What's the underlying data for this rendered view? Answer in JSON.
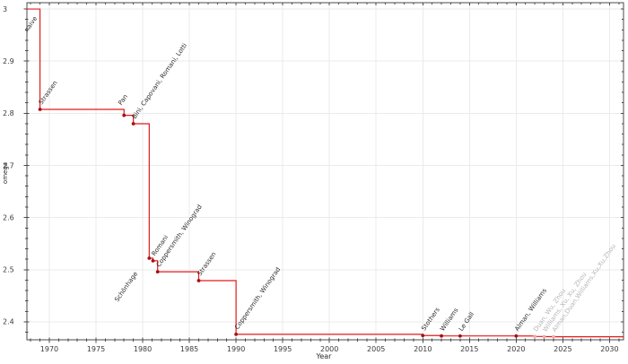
{
  "chart_data": {
    "type": "line",
    "subtype": "step",
    "title": "",
    "xlabel": "Year",
    "ylabel": "omega",
    "xlim": [
      1967.6,
      2031.5
    ],
    "ylim": [
      2.3655,
      3.0121
    ],
    "grid": true,
    "legend": null,
    "x_major_ticks": [
      1970,
      1975,
      1980,
      1985,
      1990,
      1995,
      2000,
      2005,
      2010,
      2015,
      2020,
      2025,
      2030
    ],
    "x_tick_labels": [
      "1970",
      "1975",
      "1980",
      "1985",
      "1990",
      "1995",
      "2000",
      "2005",
      "2010",
      "2015",
      "2020",
      "2025",
      "2030"
    ],
    "x_minor_step": 1,
    "y_major_ticks": [
      2.4,
      2.5,
      2.6,
      2.7,
      2.8,
      2.9,
      3.0
    ],
    "y_tick_labels": [
      "2.4",
      "2.5",
      "2.6",
      "2.7",
      "2.8",
      "2.9",
      "3"
    ],
    "y_minor_step": 0.02,
    "start_omega": 3,
    "label_rotation_deg": -55,
    "events": [
      {
        "label": "naive",
        "x": 1969,
        "omega": 3.0,
        "dot": false,
        "gray": false,
        "offset": [
          -14,
          26
        ]
      },
      {
        "label": "Strassen",
        "x": 1969,
        "omega": 2.8074,
        "dot": true,
        "gray": false
      },
      {
        "label": "Pan",
        "x": 1978,
        "omega": 2.796,
        "dot": true,
        "gray": false,
        "offset": [
          -3,
          -11
        ]
      },
      {
        "label": "Bini, Capovani, Romani, Lotti",
        "x": 1979,
        "omega": 2.78,
        "dot": true,
        "gray": false
      },
      {
        "label": "Schönhage",
        "x": 1980.7,
        "omega": 2.522,
        "dot": true,
        "gray": false,
        "offset": [
          -35,
          49
        ]
      },
      {
        "label": "Romani",
        "x": 1981.1,
        "omega": 2.517,
        "dot": true,
        "gray": false
      },
      {
        "label": "Coppersmith, Winograd",
        "x": 1981.6,
        "omega": 2.496,
        "dot": true,
        "gray": false
      },
      {
        "label": "Strassen",
        "x": 1986,
        "omega": 2.479,
        "dot": true,
        "gray": false
      },
      {
        "label": "Coppersmith, Winograd",
        "x": 1990,
        "omega": 2.376,
        "dot": true,
        "gray": false
      },
      {
        "label": "Stothers",
        "x": 2010,
        "omega": 2.3737,
        "dot": true,
        "gray": false
      },
      {
        "label": "Williams",
        "x": 2012,
        "omega": 2.3729,
        "dot": true,
        "gray": false
      },
      {
        "label": "Le Gall",
        "x": 2014,
        "omega": 2.37287,
        "dot": true,
        "gray": false
      },
      {
        "label": "Alman, Williams",
        "x": 2020,
        "omega": 2.37286,
        "dot": true,
        "gray": false
      },
      {
        "label": "Duan, Wu, Zhou",
        "x": 2022,
        "omega": 2.371866,
        "dot": true,
        "gray": true
      },
      {
        "label": "Williams, Xu, Xu, Zhou",
        "x": 2023,
        "omega": 2.371552,
        "dot": true,
        "gray": true
      },
      {
        "label": "Alman,Duan,Williams,Xu,Xu,Zhou",
        "x": 2024,
        "omega": 2.371339,
        "dot": true,
        "gray": true
      }
    ],
    "colors": {
      "line": "#e01b1b",
      "dot": "#a50f15",
      "dot_gray": "#f0a8a8",
      "label": "#2b2b2b",
      "label_gray": "#b5b5b5",
      "grid": "#ebebeb",
      "axis": "#4a4a4a",
      "tick_label": "#3a3a3a"
    }
  }
}
